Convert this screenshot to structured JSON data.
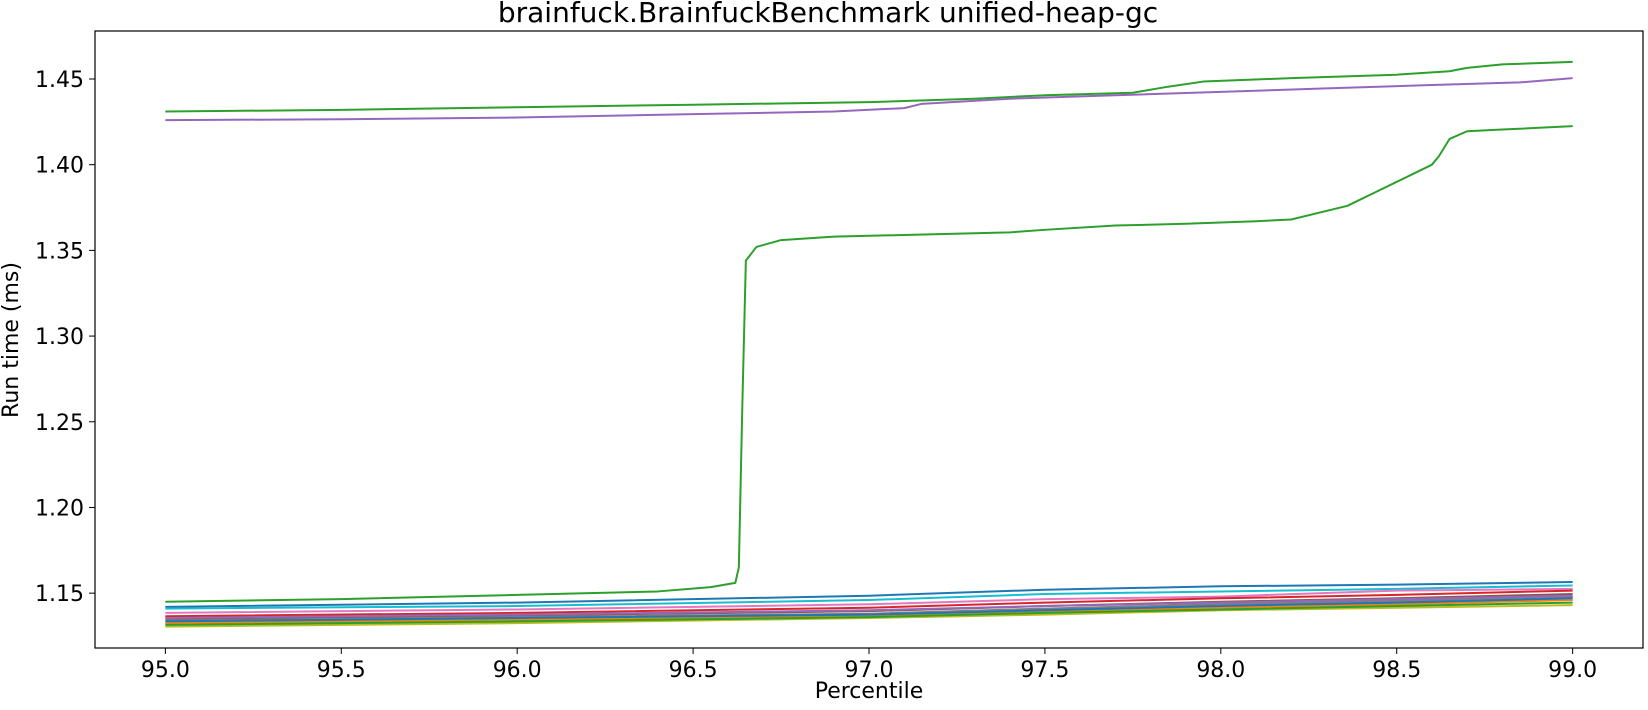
{
  "chart_data": {
    "type": "line",
    "title": "brainfuck.BrainfuckBenchmark unified-heap-gc",
    "xlabel": "Percentile",
    "ylabel": "Run time (ms)",
    "xlim": [
      94.8,
      99.2
    ],
    "ylim": [
      1.118,
      1.478
    ],
    "xticks": [
      95.0,
      95.5,
      96.0,
      96.5,
      97.0,
      97.5,
      98.0,
      98.5,
      99.0
    ],
    "xtick_labels": [
      "95.0",
      "95.5",
      "96.0",
      "96.5",
      "97.0",
      "97.5",
      "98.0",
      "98.5",
      "99.0"
    ],
    "yticks": [
      1.15,
      1.2,
      1.25,
      1.3,
      1.35,
      1.4,
      1.45
    ],
    "ytick_labels": [
      "1.15",
      "1.20",
      "1.25",
      "1.30",
      "1.35",
      "1.40",
      "1.45"
    ],
    "grid": false,
    "legend": false,
    "series": [
      {
        "color": "#2ca02c",
        "points": [
          [
            95.0,
            1.431
          ],
          [
            95.5,
            1.432
          ],
          [
            96.0,
            1.4335
          ],
          [
            96.5,
            1.435
          ],
          [
            97.0,
            1.4365
          ],
          [
            97.3,
            1.4385
          ],
          [
            97.5,
            1.4405
          ],
          [
            97.75,
            1.442
          ],
          [
            97.85,
            1.4455
          ],
          [
            97.95,
            1.4485
          ],
          [
            98.2,
            1.4505
          ],
          [
            98.5,
            1.4525
          ],
          [
            98.65,
            1.4545
          ],
          [
            98.7,
            1.4565
          ],
          [
            98.8,
            1.4585
          ],
          [
            99.0,
            1.46
          ]
        ]
      },
      {
        "color": "#9467bd",
        "points": [
          [
            95.0,
            1.426
          ],
          [
            95.5,
            1.4265
          ],
          [
            96.0,
            1.4275
          ],
          [
            96.5,
            1.4295
          ],
          [
            96.9,
            1.431
          ],
          [
            97.1,
            1.433
          ],
          [
            97.15,
            1.4355
          ],
          [
            97.4,
            1.4385
          ],
          [
            97.7,
            1.4405
          ],
          [
            98.0,
            1.4425
          ],
          [
            98.3,
            1.4445
          ],
          [
            98.6,
            1.4465
          ],
          [
            98.85,
            1.448
          ],
          [
            99.0,
            1.4505
          ]
        ]
      },
      {
        "color": "#2ca02c",
        "points": [
          [
            95.0,
            1.145
          ],
          [
            95.5,
            1.1465
          ],
          [
            96.0,
            1.149
          ],
          [
            96.4,
            1.151
          ],
          [
            96.55,
            1.1535
          ],
          [
            96.62,
            1.156
          ],
          [
            96.63,
            1.165
          ],
          [
            96.64,
            1.26
          ],
          [
            96.65,
            1.344
          ],
          [
            96.68,
            1.352
          ],
          [
            96.75,
            1.356
          ],
          [
            96.9,
            1.358
          ],
          [
            97.2,
            1.3595
          ],
          [
            97.4,
            1.3605
          ],
          [
            97.5,
            1.362
          ],
          [
            97.7,
            1.3645
          ],
          [
            97.9,
            1.3655
          ],
          [
            98.1,
            1.367
          ],
          [
            98.2,
            1.368
          ],
          [
            98.3,
            1.373
          ],
          [
            98.36,
            1.376
          ],
          [
            98.4,
            1.38
          ],
          [
            98.44,
            1.384
          ],
          [
            98.5,
            1.39
          ],
          [
            98.56,
            1.396
          ],
          [
            98.6,
            1.4
          ],
          [
            98.62,
            1.405
          ],
          [
            98.65,
            1.415
          ],
          [
            98.7,
            1.4195
          ],
          [
            98.8,
            1.4205
          ],
          [
            99.0,
            1.4225
          ]
        ]
      },
      {
        "color": "#1f77b4",
        "points": [
          [
            95.0,
            1.142
          ],
          [
            96.0,
            1.1445
          ],
          [
            97.0,
            1.1485
          ],
          [
            97.5,
            1.152
          ],
          [
            98.0,
            1.154
          ],
          [
            98.5,
            1.155
          ],
          [
            99.0,
            1.1565
          ]
        ]
      },
      {
        "color": "#17becf",
        "points": [
          [
            95.0,
            1.141
          ],
          [
            96.0,
            1.1425
          ],
          [
            97.0,
            1.146
          ],
          [
            97.5,
            1.1495
          ],
          [
            98.0,
            1.151
          ],
          [
            98.5,
            1.1525
          ],
          [
            99.0,
            1.1545
          ]
        ]
      },
      {
        "color": "#e377c2",
        "points": [
          [
            95.0,
            1.1385
          ],
          [
            96.0,
            1.1405
          ],
          [
            97.0,
            1.1435
          ],
          [
            97.5,
            1.1465
          ],
          [
            98.0,
            1.148
          ],
          [
            98.5,
            1.1515
          ],
          [
            99.0,
            1.1525
          ]
        ]
      },
      {
        "color": "#d62728",
        "points": [
          [
            95.0,
            1.1365
          ],
          [
            96.0,
            1.1385
          ],
          [
            97.0,
            1.1415
          ],
          [
            97.5,
            1.1445
          ],
          [
            98.0,
            1.147
          ],
          [
            98.5,
            1.149
          ],
          [
            99.0,
            1.1515
          ]
        ]
      },
      {
        "color": "#8c564b",
        "points": [
          [
            95.0,
            1.135
          ],
          [
            96.0,
            1.137
          ],
          [
            97.0,
            1.1395
          ],
          [
            97.5,
            1.1425
          ],
          [
            98.0,
            1.145
          ],
          [
            98.5,
            1.147
          ],
          [
            99.0,
            1.1495
          ]
        ]
      },
      {
        "color": "#7f7f7f",
        "points": [
          [
            95.0,
            1.134
          ],
          [
            96.0,
            1.136
          ],
          [
            97.0,
            1.138
          ],
          [
            97.5,
            1.141
          ],
          [
            98.0,
            1.1435
          ],
          [
            98.5,
            1.1455
          ],
          [
            99.0,
            1.148
          ]
        ]
      },
      {
        "color": "#ff7f0e",
        "points": [
          [
            95.0,
            1.1325
          ],
          [
            96.0,
            1.1345
          ],
          [
            97.0,
            1.1365
          ],
          [
            97.5,
            1.139
          ],
          [
            98.0,
            1.1415
          ],
          [
            98.5,
            1.1435
          ],
          [
            99.0,
            1.146
          ]
        ]
      },
      {
        "color": "#1f77b4",
        "points": [
          [
            95.0,
            1.1335
          ],
          [
            96.0,
            1.1355
          ],
          [
            97.0,
            1.1375
          ],
          [
            97.5,
            1.14
          ],
          [
            98.0,
            1.1425
          ],
          [
            98.5,
            1.1445
          ],
          [
            99.0,
            1.147
          ]
        ]
      },
      {
        "color": "#bcbd22",
        "points": [
          [
            95.0,
            1.1305
          ],
          [
            96.0,
            1.1325
          ],
          [
            97.0,
            1.1355
          ],
          [
            97.5,
            1.1375
          ],
          [
            98.0,
            1.14
          ],
          [
            98.5,
            1.1415
          ],
          [
            99.0,
            1.143
          ]
        ]
      },
      {
        "color": "#2ca02c",
        "points": [
          [
            95.0,
            1.1315
          ],
          [
            96.0,
            1.1335
          ],
          [
            97.0,
            1.136
          ],
          [
            97.5,
            1.1385
          ],
          [
            98.0,
            1.1405
          ],
          [
            98.5,
            1.1425
          ],
          [
            99.0,
            1.1445
          ]
        ]
      },
      {
        "color": "#9467bd",
        "points": [
          [
            95.0,
            1.1355
          ],
          [
            96.0,
            1.1375
          ],
          [
            97.0,
            1.14
          ],
          [
            97.5,
            1.1425
          ],
          [
            98.0,
            1.1445
          ],
          [
            98.5,
            1.1465
          ],
          [
            99.0,
            1.1485
          ]
        ]
      }
    ]
  }
}
